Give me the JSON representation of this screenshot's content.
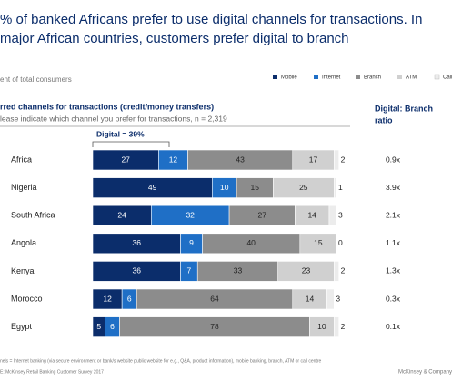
{
  "chart_data": {
    "type": "stacked-bar-horizontal",
    "title_lines": [
      "% of banked Africans prefer to use digital channels for transactions.  In",
      "major African countries, customers prefer digital to branch"
    ],
    "subtitle": "ent of total  consumers",
    "heading": "rred channels  for transactions  (credit/money  transfers)",
    "question": "lease indicate which  channel you prefer for transactions,  n = 2,319",
    "ratio_header": [
      "Digital:  Branch",
      "ratio"
    ],
    "annotation": "Digital  = 39%",
    "categories": [
      "Africa",
      "Nigeria",
      "South Africa",
      "Angola",
      "Kenya",
      "Morocco",
      "Egypt"
    ],
    "series": [
      {
        "name": "Mobile",
        "color": "#0b2d6b",
        "values": [
          27,
          49,
          24,
          36,
          36,
          12,
          5
        ]
      },
      {
        "name": "Internet",
        "color": "#1f6fc6",
        "values": [
          12,
          10,
          32,
          9,
          7,
          6,
          6
        ]
      },
      {
        "name": "Branch",
        "color": "#8c8c8c",
        "values": [
          43,
          15,
          27,
          40,
          33,
          64,
          78
        ]
      },
      {
        "name": "ATM",
        "color": "#d0d0d0",
        "values": [
          17,
          25,
          14,
          15,
          23,
          14,
          10
        ]
      },
      {
        "name": "Call Ce",
        "color": "#ececec",
        "values": [
          2,
          1,
          3,
          0,
          2,
          3,
          2
        ]
      }
    ],
    "ratios": [
      "0.9x",
      "3.9x",
      "2.1x",
      "1.1x",
      "1.3x",
      "0.3x",
      "0.1x"
    ],
    "footnote": "nels = Internet banking (via secure environment or bank/s website public website for e.g., Q&A, product information), mobile  banking, branch, ATM or call centre",
    "source": "E:  McKinsey Retail Banking Customer Survey 2017",
    "brand": "McKinsey & Company"
  }
}
